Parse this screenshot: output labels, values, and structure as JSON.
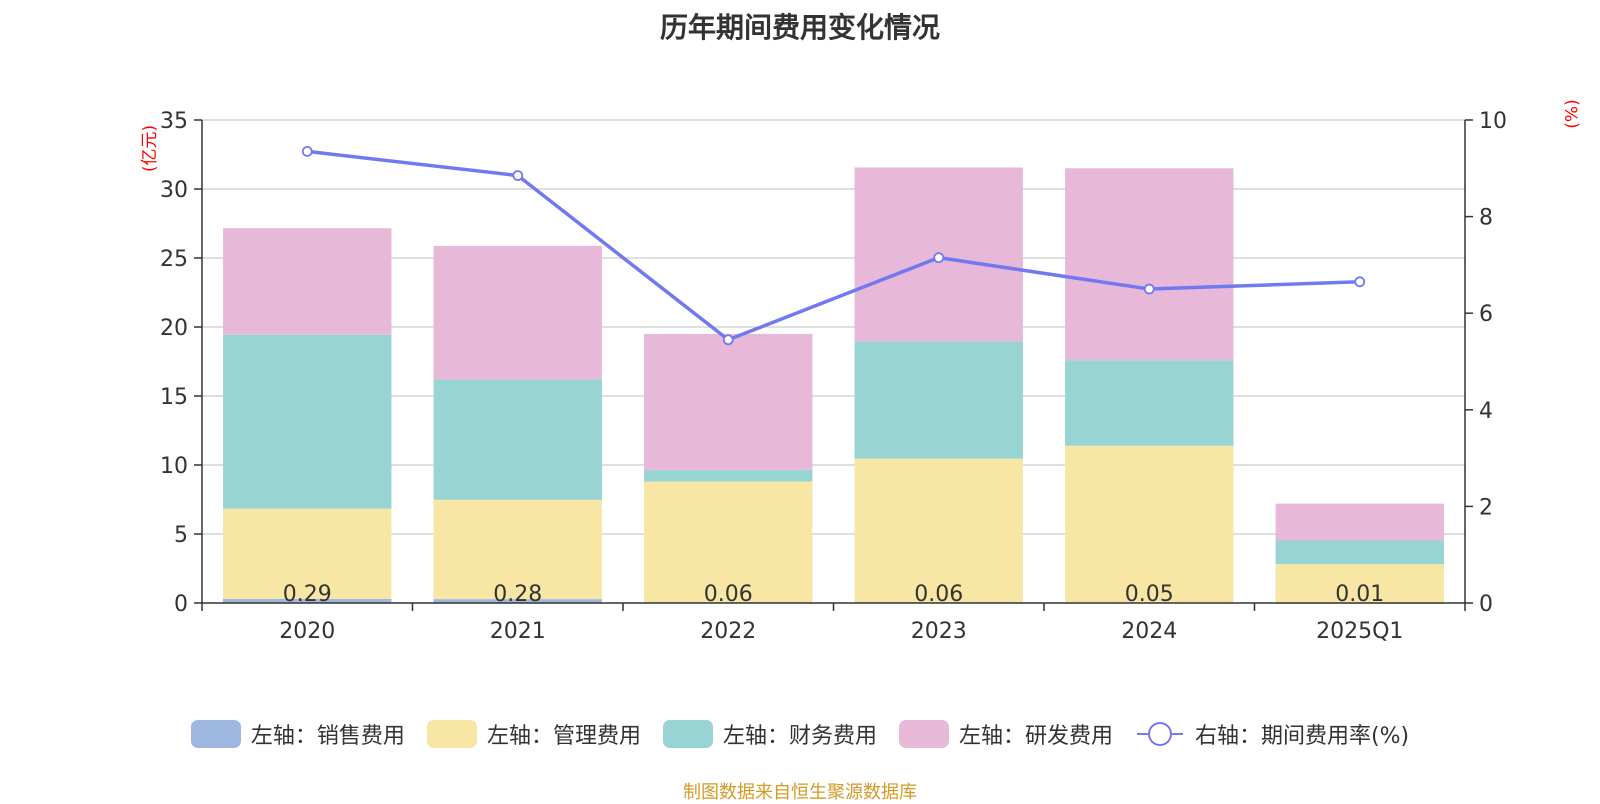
{
  "chart_data": {
    "type": "bar",
    "title": "历年期间费用变化情况",
    "left_unit": "(亿元)",
    "right_unit": "(%)",
    "categories": [
      "2020",
      "2021",
      "2022",
      "2023",
      "2024",
      "2025Q1"
    ],
    "ylim_left": [
      0,
      35
    ],
    "yticks_left": [
      "0",
      "5",
      "10",
      "15",
      "20",
      "25",
      "30",
      "35"
    ],
    "ylim_right": [
      0,
      10
    ],
    "yticks_right": [
      "0",
      "2",
      "4",
      "6",
      "8",
      "10"
    ],
    "grid": true,
    "legend_position": "bottom",
    "series": [
      {
        "name": "左轴：销售费用",
        "kind": "bar",
        "axis": "left",
        "color": "#9db7e0",
        "values": [
          0.29,
          0.28,
          0.06,
          0.06,
          0.05,
          0.01
        ],
        "data_labels": [
          "0.29",
          "0.28",
          "0.06",
          "0.06",
          "0.05",
          "0.01"
        ]
      },
      {
        "name": "左轴：管理费用",
        "kind": "bar",
        "axis": "left",
        "color": "#f8e6a5",
        "values": [
          6.55,
          7.2,
          8.74,
          10.4,
          11.35,
          2.8
        ]
      },
      {
        "name": "左轴：财务费用",
        "kind": "bar",
        "axis": "left",
        "color": "#98d4d4",
        "values": [
          12.6,
          8.72,
          0.85,
          8.5,
          6.2,
          1.72
        ]
      },
      {
        "name": "左轴：研发费用",
        "kind": "bar",
        "axis": "left",
        "color": "#e8b8d8",
        "values": [
          7.72,
          9.68,
          9.85,
          12.6,
          13.9,
          2.67
        ]
      },
      {
        "name": "右轴：期间费用率(%)",
        "kind": "line",
        "axis": "right",
        "color": "#7279f0",
        "values": [
          9.35,
          8.85,
          5.45,
          7.15,
          6.5,
          6.65
        ]
      }
    ]
  },
  "source_note": "制图数据来自恒生聚源数据库"
}
